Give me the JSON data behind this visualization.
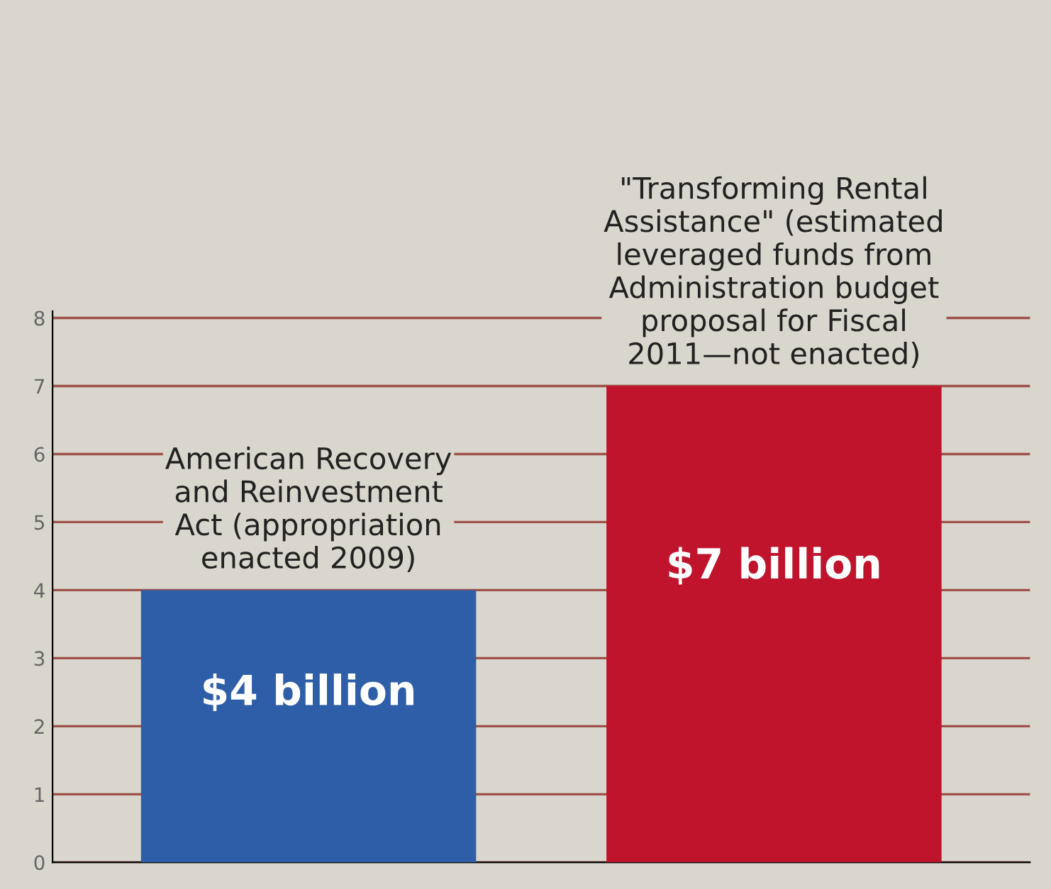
{
  "chart_data": {
    "type": "bar",
    "categories": [
      "American Recovery\nand Reinvestment\nAct (appropriation\nenacted 2009)",
      "\"Transforming Rental\nAssistance\" (estimated\nleveraged funds from\nAdministration budget\nproposal for Fiscal\n2011—not enacted)"
    ],
    "values": [
      4,
      7
    ],
    "colors": [
      "#2f5ea8",
      "#c0142c"
    ],
    "value_labels": [
      "$4 billion",
      "$7 billion"
    ],
    "ylim": [
      0,
      8.1
    ],
    "yticks": [
      0,
      1,
      2,
      3,
      4,
      5,
      6,
      7,
      8
    ],
    "grid": "y"
  }
}
